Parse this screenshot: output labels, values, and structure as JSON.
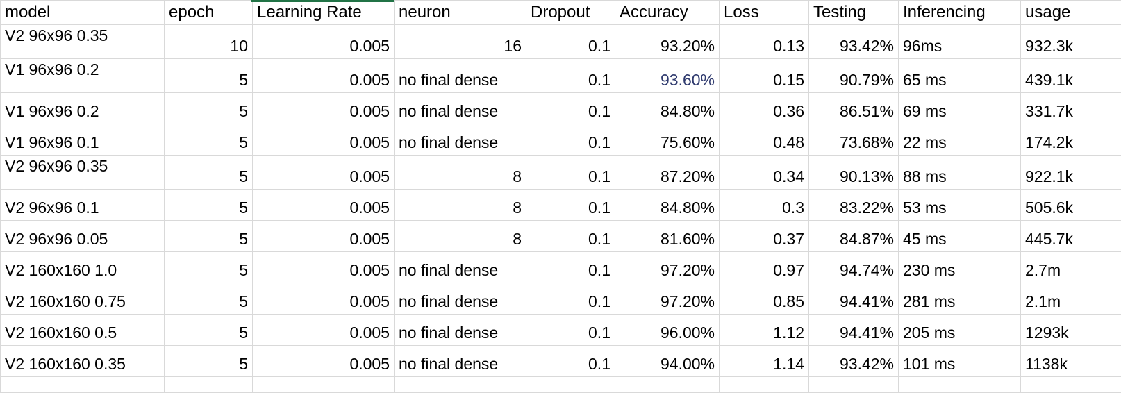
{
  "columns": [
    "model",
    "epoch",
    "Learning Rate",
    "neuron",
    "Dropout",
    "Accuracy",
    "Loss",
    "Testing",
    "Inferencing",
    "usage"
  ],
  "rows": [
    {
      "model": "V2 96x96 0.35",
      "epoch": "10",
      "lr": "0.005",
      "neuron": "16",
      "dropout": "0.1",
      "accuracy": "93.20%",
      "loss": "0.13",
      "testing": "93.42%",
      "inferencing": "96ms",
      "usage": "932.3k"
    },
    {
      "model": "V1 96x96 0.2",
      "epoch": "5",
      "lr": "0.005",
      "neuron": "no final dense",
      "dropout": "0.1",
      "accuracy": "93.60%",
      "loss": "0.15",
      "testing": "90.79%",
      "inferencing": "65 ms",
      "usage": "439.1k"
    },
    {
      "model": "V1 96x96 0.2",
      "epoch": "5",
      "lr": "0.005",
      "neuron": "no final dense",
      "dropout": "0.1",
      "accuracy": "84.80%",
      "loss": "0.36",
      "testing": "86.51%",
      "inferencing": "69 ms",
      "usage": "331.7k"
    },
    {
      "model": "V1 96x96 0.1",
      "epoch": "5",
      "lr": "0.005",
      "neuron": "no final dense",
      "dropout": "0.1",
      "accuracy": "75.60%",
      "loss": "0.48",
      "testing": "73.68%",
      "inferencing": "22 ms",
      "usage": "174.2k"
    },
    {
      "model": "V2 96x96 0.35",
      "epoch": "5",
      "lr": "0.005",
      "neuron": "8",
      "dropout": "0.1",
      "accuracy": "87.20%",
      "loss": "0.34",
      "testing": "90.13%",
      "inferencing": "88 ms",
      "usage": "922.1k"
    },
    {
      "model": "V2 96x96 0.1",
      "epoch": "5",
      "lr": "0.005",
      "neuron": "8",
      "dropout": "0.1",
      "accuracy": "84.80%",
      "loss": "0.3",
      "testing": "83.22%",
      "inferencing": "53 ms",
      "usage": "505.6k"
    },
    {
      "model": "V2 96x96 0.05",
      "epoch": "5",
      "lr": "0.005",
      "neuron": "8",
      "dropout": "0.1",
      "accuracy": "81.60%",
      "loss": "0.37",
      "testing": "84.87%",
      "inferencing": "45 ms",
      "usage": "445.7k"
    },
    {
      "model": "V2 160x160 1.0",
      "epoch": "5",
      "lr": "0.005",
      "neuron": "no final dense",
      "dropout": "0.1",
      "accuracy": "97.20%",
      "loss": "0.97",
      "testing": "94.74%",
      "inferencing": "230 ms",
      "usage": "2.7m"
    },
    {
      "model": "V2 160x160 0.75",
      "epoch": "5",
      "lr": "0.005",
      "neuron": "no final dense",
      "dropout": "0.1",
      "accuracy": "97.20%",
      "loss": "0.85",
      "testing": "94.41%",
      "inferencing": "281 ms",
      "usage": "2.1m"
    },
    {
      "model": "V2 160x160 0.5",
      "epoch": "5",
      "lr": "0.005",
      "neuron": "no final dense",
      "dropout": "0.1",
      "accuracy": "96.00%",
      "loss": "1.12",
      "testing": "94.41%",
      "inferencing": "205 ms",
      "usage": "1293k"
    },
    {
      "model": "V2 160x160 0.35",
      "epoch": "5",
      "lr": "0.005",
      "neuron": "no final dense",
      "dropout": "0.1",
      "accuracy": "94.00%",
      "loss": "1.14",
      "testing": "93.42%",
      "inferencing": "101 ms",
      "usage": "1138k"
    }
  ],
  "colors": {
    "gridline": "#d9d9d9",
    "selection": "#217346",
    "accent_text": "#2f3a6e"
  }
}
